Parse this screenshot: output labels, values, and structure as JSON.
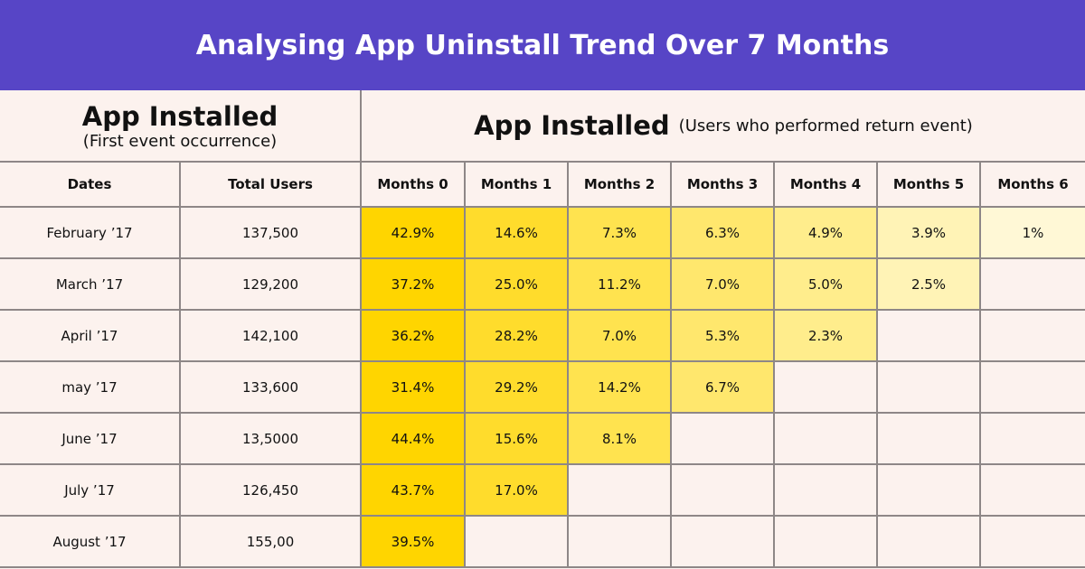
{
  "title": "Analysing App Uninstall Trend Over 7 Months",
  "left_header": {
    "title": "App Installed",
    "subtitle": "(First event occurrence)"
  },
  "right_header": {
    "title": "App Installed",
    "subtitle": "(Users who performed return event)"
  },
  "chart_data": {
    "type": "heatmap",
    "columns": [
      "Dates",
      "Total Users",
      "Months 0",
      "Months 1",
      "Months 2",
      "Months 3",
      "Months 4",
      "Months 5",
      "Months 6"
    ],
    "rows": [
      {
        "date": "February ’17",
        "total": "137,500",
        "values": [
          "42.9%",
          "14.6%",
          "7.3%",
          "6.3%",
          "4.9%",
          "3.9%",
          "1%"
        ]
      },
      {
        "date": "March ’17",
        "total": "129,200",
        "values": [
          "37.2%",
          "25.0%",
          "11.2%",
          "7.0%",
          "5.0%",
          "2.5%"
        ]
      },
      {
        "date": "April ’17",
        "total": "142,100",
        "values": [
          "36.2%",
          "28.2%",
          "7.0%",
          "5.3%",
          "2.3%"
        ]
      },
      {
        "date": "may ’17",
        "total": "133,600",
        "values": [
          "31.4%",
          "29.2%",
          "14.2%",
          "6.7%"
        ]
      },
      {
        "date": "June ’17",
        "total": "13,5000",
        "values": [
          "44.4%",
          "15.6%",
          "8.1%"
        ]
      },
      {
        "date": "July ’17",
        "total": "126,450",
        "values": [
          "43.7%",
          "17.0%"
        ]
      },
      {
        "date": "August ’17",
        "total": "155,00",
        "values": [
          "39.5%"
        ]
      }
    ],
    "column_colors": [
      "#ffd500",
      "#ffdc2c",
      "#ffe34f",
      "#ffe76d",
      "#ffed8c",
      "#fff3b6",
      "#fff8d6"
    ]
  },
  "colors": {
    "banner": "#5745c6",
    "background": "#fcf2ee",
    "grid": "#8e8787"
  }
}
